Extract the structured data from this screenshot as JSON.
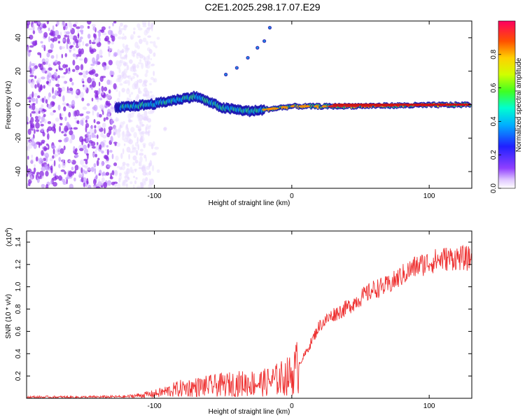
{
  "title": "C2E1.2025.298.17.07.E29",
  "chart_data": [
    {
      "type": "heatmap",
      "xlabel": "Height of straight line (km)",
      "ylabel": "Frequency (Hz)",
      "xlim": [
        -193,
        131
      ],
      "ylim": [
        -50,
        50
      ],
      "xticks": [
        -100,
        0,
        100
      ],
      "yticks": [
        -40,
        -20,
        0,
        20,
        40
      ],
      "colorbar": {
        "label": "Normalized spectral amplitude",
        "range": [
          0,
          1
        ],
        "ticks": [
          0.0,
          0.2,
          0.4,
          0.6,
          0.8
        ]
      },
      "features": {
        "carrier_line": {
          "x": [
            -128,
            -100,
            -70,
            -50,
            -30,
            0,
            30,
            130
          ],
          "y": [
            -2,
            0.5,
            5,
            -2,
            -4,
            -1,
            -1,
            0
          ]
        },
        "diagonal_trace": {
          "x": [
            -48,
            -40,
            -32,
            -25,
            -20,
            -16
          ],
          "y": [
            18,
            22,
            28,
            34,
            38,
            46
          ]
        },
        "noise_region_x": [
          -193,
          -100
        ]
      }
    },
    {
      "type": "line",
      "xlabel": "Height of straight line (km)",
      "ylabel": "SNR (10 * v/v)",
      "multiplier": "(x10",
      "exponent": "4",
      "xlim": [
        -193,
        131
      ],
      "ylim": [
        0,
        15000
      ],
      "xticks": [
        -100,
        0,
        100
      ],
      "yticks": [
        0.2,
        0.4,
        0.6,
        0.8,
        1.0,
        1.2,
        1.4
      ],
      "series": [
        {
          "name": "SNR",
          "color": "#ee3333",
          "x": [
            -193,
            -150,
            -120,
            -100,
            -80,
            -60,
            -40,
            -20,
            -10,
            0,
            10,
            20,
            30,
            40,
            50,
            60,
            70,
            80,
            90,
            100,
            110,
            120,
            131
          ],
          "y": [
            100,
            100,
            150,
            400,
            900,
            1100,
            1300,
            1400,
            1700,
            2100,
            4000,
            6500,
            7500,
            8100,
            9000,
            9800,
            10100,
            11000,
            11800,
            12200,
            12500,
            12600,
            12500
          ]
        }
      ]
    }
  ]
}
